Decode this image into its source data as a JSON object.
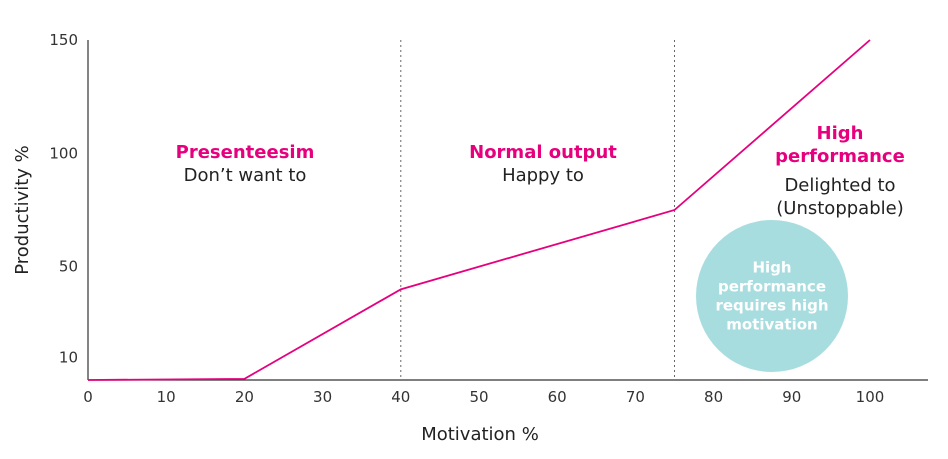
{
  "chart_data": {
    "type": "line",
    "xlabel": "Motivation %",
    "ylabel": "Productivity %",
    "xlim": [
      0,
      100
    ],
    "ylim": [
      0,
      150
    ],
    "x_ticks": [
      0,
      10,
      20,
      30,
      40,
      50,
      60,
      70,
      80,
      90,
      100
    ],
    "y_ticks": [
      10,
      50,
      100,
      150
    ],
    "grid": false,
    "x": [
      0,
      20,
      40,
      75,
      100
    ],
    "y": [
      0,
      0.5,
      40,
      75,
      150
    ],
    "vlines": [
      40,
      75
    ],
    "zones": [
      {
        "title": "Presenteesim",
        "subtitle": [
          "Don’t want to"
        ]
      },
      {
        "title": "Normal output",
        "subtitle": [
          "Happy to"
        ]
      },
      {
        "title": "High performance",
        "subtitle": [
          "Delighted to",
          "(Unstoppable)"
        ]
      }
    ],
    "annotation": [
      "High",
      "performance",
      "requires high",
      "motivation"
    ]
  },
  "colors": {
    "line": "#e6007e",
    "accent": "#e6007e",
    "bubble": "#a8dde0",
    "axis": "#333333",
    "vline": "#666666"
  }
}
